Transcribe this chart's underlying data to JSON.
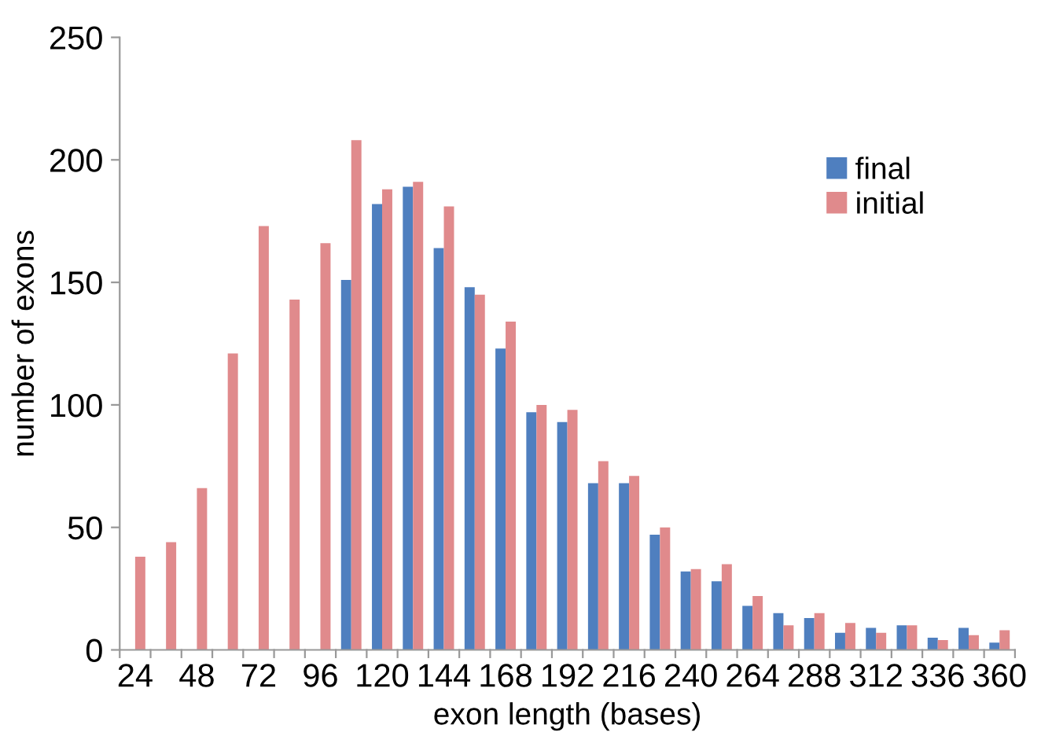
{
  "chart_data": {
    "type": "bar",
    "xlabel": "exon length (bases)",
    "ylabel": "number of exons",
    "categories": [
      "24",
      null,
      "48",
      null,
      "72",
      null,
      "96",
      null,
      "120",
      null,
      "144",
      null,
      "168",
      null,
      "192",
      null,
      "216",
      null,
      "240",
      null,
      "264",
      null,
      "288",
      null,
      "312",
      null,
      "336",
      null,
      "360"
    ],
    "series": [
      {
        "name": "final",
        "color": "#4f7fbf",
        "values": [
          0,
          0,
          0,
          0,
          0,
          0,
          0,
          151,
          182,
          189,
          164,
          148,
          123,
          97,
          93,
          68,
          68,
          47,
          32,
          28,
          18,
          15,
          13,
          7,
          9,
          10,
          5,
          9,
          3
        ]
      },
      {
        "name": "initial",
        "color": "#e08a8c",
        "values": [
          38,
          44,
          66,
          121,
          173,
          143,
          166,
          208,
          188,
          191,
          181,
          145,
          134,
          100,
          98,
          77,
          71,
          50,
          33,
          35,
          22,
          10,
          15,
          11,
          7,
          10,
          4,
          6,
          8
        ]
      }
    ],
    "ylim": [
      0,
      250
    ],
    "yticks": [
      0,
      50,
      100,
      150,
      200,
      250
    ],
    "grid": false,
    "legend": "top right"
  }
}
